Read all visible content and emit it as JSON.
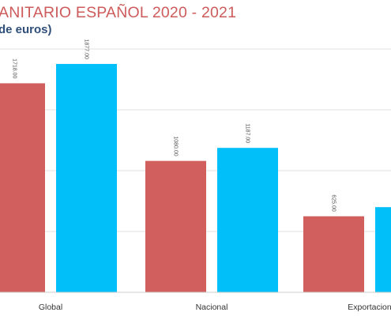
{
  "chart_data": {
    "type": "bar",
    "title": "ANITARIO ESPAÑOL 2020 - 2021",
    "subtitle": "de euros)",
    "categories": [
      "Global",
      "Nacional",
      "Exportacion"
    ],
    "series": [
      {
        "values": [
          1718.0,
          1080.0,
          625.0
        ],
        "labels": [
          "1718.00",
          "1080.00",
          "625.00"
        ],
        "color": "#d05f5e"
      },
      {
        "values": [
          1877.0,
          1187.0,
          700
        ],
        "labels": [
          "1877.00",
          "1187.00",
          null
        ],
        "color": "#00bff9"
      }
    ],
    "ylim": [
      0,
      2000
    ],
    "grid": true,
    "colors": {
      "title": "#cd5b5b",
      "subtitle": "#2f4f7a",
      "gridline": "#e0e0e0",
      "axis": "#cccccc"
    }
  }
}
